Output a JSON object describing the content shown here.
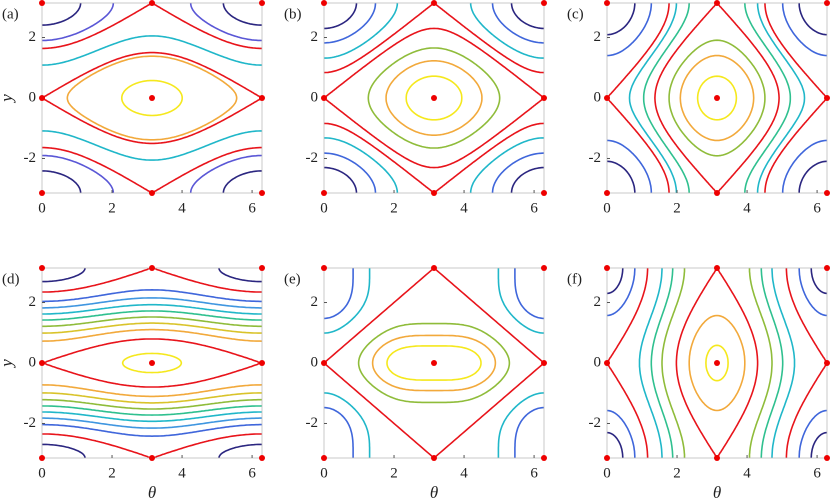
{
  "chart_data": [
    {
      "type": "contour",
      "panel": "(a)",
      "y_label": "y",
      "xlim": [
        0,
        6.2832
      ],
      "ylim": [
        -3.1416,
        3.1416
      ],
      "xticks": [
        0,
        2,
        4,
        6
      ],
      "yticks": [
        -2,
        0,
        2
      ],
      "levels": [
        -2.8,
        -1.4,
        -1.15,
        0,
        1.15,
        1.7,
        2.6
      ],
      "colors": [
        "#f5e81d",
        "#f2a93b",
        "#e8141b",
        "#20b7c9",
        "#e8141b",
        "#5a57d6",
        "#2b2680"
      ]
    },
    {
      "type": "contour",
      "panel": "(b)",
      "xlim": [
        0,
        6.2832
      ],
      "ylim": [
        -3.1416,
        3.1416
      ],
      "xticks": [
        0,
        2,
        4,
        6
      ],
      "yticks": [
        -2,
        0,
        2
      ],
      "levels": [
        -1.9,
        -1.4,
        -0.9,
        -0.2,
        0.2,
        0.7,
        1.3,
        1.8
      ],
      "colors": [
        "#f5e81d",
        "#f2a93b",
        "#8fbc3a",
        "#e8141b",
        "#e8141b",
        "#20b7c9",
        "#3f66db",
        "#2b2680"
      ]
    },
    {
      "type": "contour",
      "panel": "(c)",
      "xlim": [
        0,
        6.2832
      ],
      "ylim": [
        -3.1416,
        3.1416
      ],
      "xticks": [
        0,
        2,
        4,
        6
      ],
      "yticks": [
        -2,
        0,
        2
      ],
      "levels": [
        -1.45,
        -1.1,
        -0.8,
        -0.4,
        -0.1,
        0.2,
        0.4,
        0.9,
        1.3
      ],
      "colors": [
        "#f5e81d",
        "#f2a93b",
        "#8fbc3a",
        "#e8141b",
        "#2fc08f",
        "#20b7c9",
        "#e8141b",
        "#3f66db",
        "#2b2680"
      ]
    },
    {
      "type": "contour",
      "panel": "(d)",
      "y_label": "y",
      "x_label": "θ",
      "xlim": [
        0,
        6.2832
      ],
      "ylim": [
        -3.1416,
        3.1416
      ],
      "xticks": [
        0,
        2,
        4,
        6
      ],
      "yticks": [
        -2,
        0,
        2
      ],
      "levels": [
        -1.1,
        -0.85,
        -0.6,
        -0.4,
        -0.2,
        0,
        0.2,
        0.4,
        0.6,
        0.85,
        1.05
      ],
      "colors": [
        "#f5e81d",
        "#e8141b",
        "#f2a93b",
        "#d9c32a",
        "#8fbc3a",
        "#2fc08f",
        "#20b7c9",
        "#3f96e0",
        "#3f66db",
        "#e8141b",
        "#2b2680"
      ]
    },
    {
      "type": "contour",
      "panel": "(e)",
      "x_label": "θ",
      "xlim": [
        0,
        6.2832
      ],
      "ylim": [
        -3.1416,
        3.1416
      ],
      "xticks": [
        0,
        2,
        4,
        6
      ],
      "yticks": [
        -2,
        0,
        2
      ],
      "levels": [
        -1.7,
        -1.3,
        -0.8,
        0,
        0.8,
        1.4
      ],
      "colors": [
        "#f5e81d",
        "#f2a93b",
        "#8fbc3a",
        "#e8141b",
        "#20b7c9",
        "#3f66db"
      ]
    },
    {
      "type": "contour",
      "panel": "(f)",
      "x_label": "θ",
      "xlim": [
        0,
        6.2832
      ],
      "ylim": [
        -3.1416,
        3.1416
      ],
      "xticks": [
        0,
        2,
        4,
        6
      ],
      "yticks": [
        -2,
        0,
        2
      ],
      "levels": [
        -1.25,
        -1.0,
        -0.7,
        -0.3,
        0,
        0.3,
        0.7,
        1.0,
        1.2
      ],
      "colors": [
        "#f5e81d",
        "#f2a93b",
        "#e8141b",
        "#8fbc3a",
        "#2fc08f",
        "#20b7c9",
        "#e8141b",
        "#3f66db",
        "#2b2680"
      ]
    }
  ]
}
